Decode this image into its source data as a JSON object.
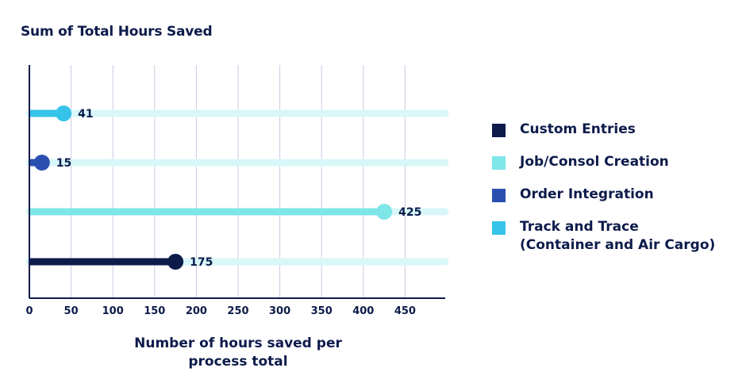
{
  "chart_data": {
    "type": "bar",
    "title": "Sum of Total Hours Saved",
    "xlabel": "Number of hours saved per\nprocess total",
    "ylabel": "",
    "xlim": [
      0,
      500
    ],
    "x_ticks": [
      0,
      50,
      100,
      150,
      200,
      250,
      300,
      350,
      400,
      450
    ],
    "orientation": "horizontal",
    "style": "lollipop",
    "grid": true,
    "legend_position": "right",
    "series": [
      {
        "name": "Track and Trace\n(Container and Air Cargo)",
        "value": 41,
        "color": "#36c3ea"
      },
      {
        "name": "Order Integration",
        "value": 15,
        "color": "#2a4fb0"
      },
      {
        "name": "Job/Consol Creation",
        "value": 425,
        "color": "#7fe6e8"
      },
      {
        "name": "Custom Entries",
        "value": 175,
        "color": "#0d1b4b"
      }
    ],
    "legend": [
      {
        "label": "Custom Entries",
        "color": "#0d1b4b"
      },
      {
        "label": "Job/Consol Creation",
        "color": "#7fe6e8"
      },
      {
        "label": "Order Integration",
        "color": "#2a4fb0"
      },
      {
        "label": "Track and Trace\n(Container and Air Cargo)",
        "color": "#36c3ea"
      }
    ],
    "track_color": "#d8f7f8"
  }
}
